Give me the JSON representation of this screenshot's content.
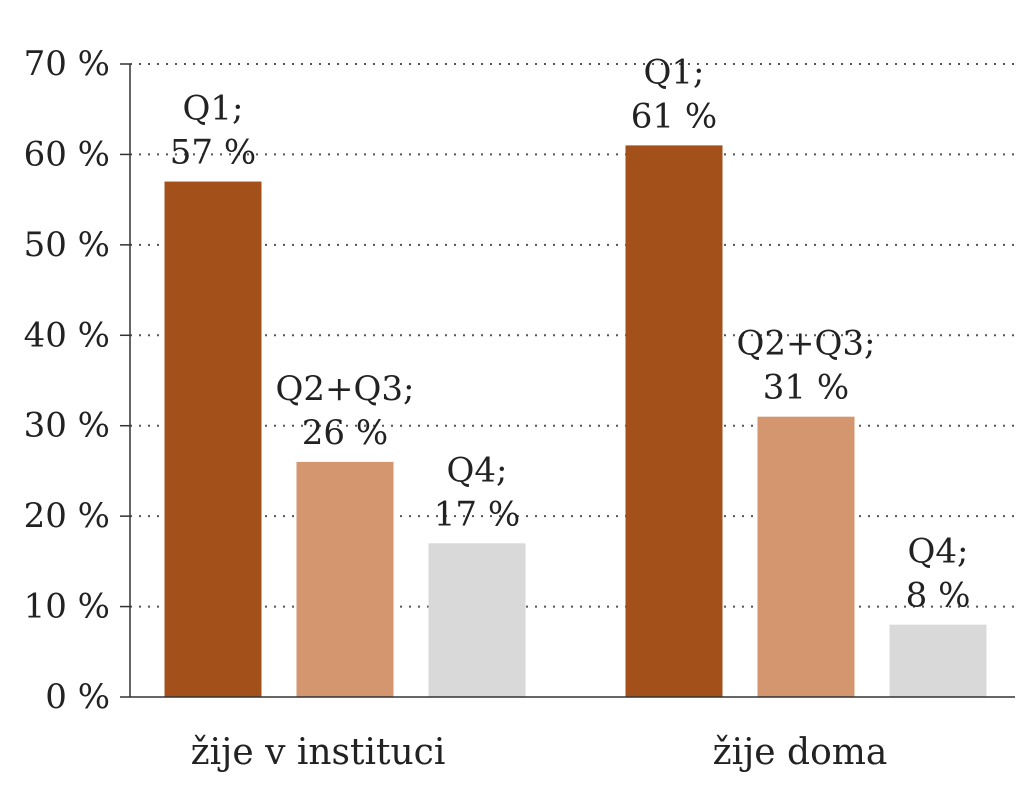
{
  "chart_data": {
    "type": "bar",
    "title": "",
    "xlabel": "",
    "ylabel": "",
    "ylim": [
      0,
      70
    ],
    "yticks": [
      0,
      10,
      20,
      30,
      40,
      50,
      60,
      70
    ],
    "ytick_labels": [
      "0 %",
      "10 %",
      "20 %",
      "30 %",
      "40 %",
      "50 %",
      "60 %",
      "70 %"
    ],
    "grid": "horizontal dotted",
    "legend": "none",
    "categories": [
      "žije v instituci",
      "žije doma"
    ],
    "groups": [
      {
        "category": "žije v instituci",
        "bars": [
          {
            "key": "Q1",
            "value": 57,
            "label_line1": "Q1;",
            "label_line2": "57 %",
            "color": "#a4501b"
          },
          {
            "key": "Q2+Q3",
            "value": 26,
            "label_line1": "Q2+Q3;",
            "label_line2": "26 %",
            "color": "#d3966f"
          },
          {
            "key": "Q4",
            "value": 17,
            "label_line1": "Q4;",
            "label_line2": "17 %",
            "color": "#d9d9d9"
          }
        ]
      },
      {
        "category": "žije doma",
        "bars": [
          {
            "key": "Q1",
            "value": 61,
            "label_line1": "Q1;",
            "label_line2": "61 %",
            "color": "#a4501b"
          },
          {
            "key": "Q2+Q3",
            "value": 31,
            "label_line1": "Q2+Q3;",
            "label_line2": "31 %",
            "color": "#d3966f"
          },
          {
            "key": "Q4",
            "value": 8,
            "label_line1": "Q4;",
            "label_line2": "8 %",
            "color": "#d9d9d9"
          }
        ]
      }
    ]
  }
}
